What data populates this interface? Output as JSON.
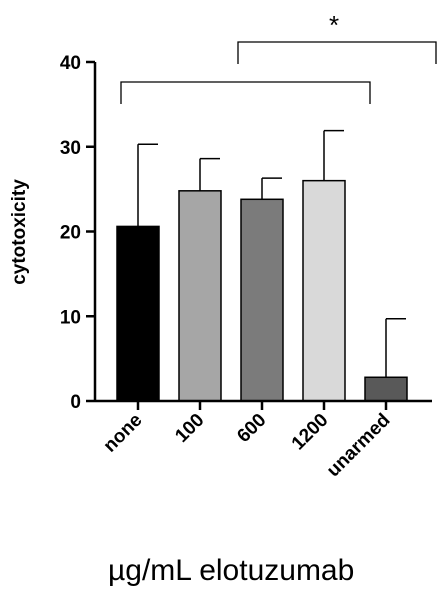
{
  "chart_data": {
    "type": "bar",
    "categories": [
      "none",
      "100",
      "600",
      "1200",
      "unarmed"
    ],
    "values": [
      20.6,
      24.8,
      23.8,
      26.0,
      2.8
    ],
    "errors": [
      9.7,
      3.8,
      2.5,
      5.9,
      6.9
    ],
    "colors": [
      "#000000",
      "#a6a6a6",
      "#7b7b7b",
      "#d9d9d9",
      "#595959"
    ],
    "ylabel": "cytotoxicity",
    "xlabel": "µg/mL elotuzumab",
    "ylim": [
      0,
      40
    ],
    "yticks": [
      0,
      10,
      20,
      30,
      40
    ],
    "grid": false,
    "significance": [
      {
        "from": "none",
        "to": "unarmed",
        "label": ""
      },
      {
        "from": "100",
        "to": "unarmed",
        "label": "*"
      }
    ]
  }
}
